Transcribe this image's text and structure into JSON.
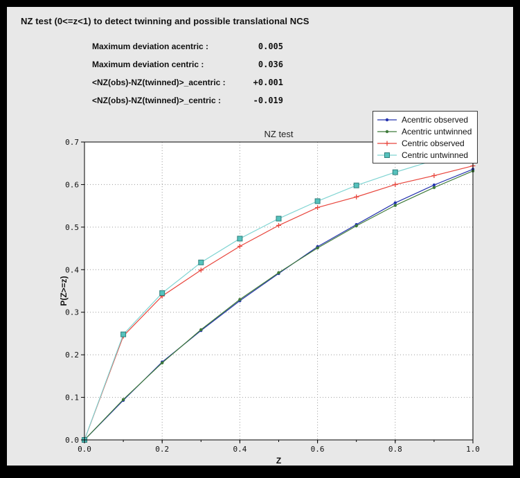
{
  "header": {
    "title": "NZ test (0<=z<1) to detect twinning and possible translational NCS",
    "stats": [
      {
        "label": "Maximum deviation acentric :",
        "value": "0.005"
      },
      {
        "label": "Maximum deviation centric :",
        "value": "0.036"
      },
      {
        "label": "<NZ(obs)-NZ(twinned)>_acentric :",
        "value": "+0.001"
      },
      {
        "label": "<NZ(obs)-NZ(twinned)>_centric :",
        "value": "-0.019"
      }
    ]
  },
  "chart_data": {
    "type": "line",
    "title": "NZ test",
    "xlabel": "Z",
    "ylabel": "P(Z>=z)",
    "xlim": [
      0.0,
      1.0
    ],
    "ylim": [
      0.0,
      0.7
    ],
    "x_ticks": [
      0.0,
      0.2,
      0.4,
      0.6,
      0.8,
      1.0
    ],
    "y_ticks": [
      0.0,
      0.1,
      0.2,
      0.3,
      0.4,
      0.5,
      0.6,
      0.7
    ],
    "grid": "dotted",
    "grid_color": "#9a9a9a",
    "plot_bg": "#ffffff",
    "figure_bg": "#e8e8e8",
    "legend_position": "upper right",
    "x": [
      0.0,
      0.1,
      0.2,
      0.3,
      0.4,
      0.5,
      0.6,
      0.7,
      0.8,
      0.9,
      1.0
    ],
    "series": [
      {
        "name": "Acentric observed",
        "color": "#2433ae",
        "marker": "dot",
        "values": [
          0.0,
          0.093,
          0.183,
          0.257,
          0.327,
          0.391,
          0.454,
          0.506,
          0.557,
          0.599,
          0.636
        ]
      },
      {
        "name": "Acentric untwinned",
        "color": "#3f7a3b",
        "marker": "dot",
        "values": [
          0.0,
          0.095,
          0.181,
          0.259,
          0.33,
          0.393,
          0.451,
          0.503,
          0.551,
          0.593,
          0.632
        ]
      },
      {
        "name": "Centric observed",
        "color": "#e8453c",
        "marker": "plus",
        "values": [
          0.0,
          0.244,
          0.338,
          0.399,
          0.455,
          0.504,
          0.546,
          0.571,
          0.6,
          0.621,
          0.644
        ]
      },
      {
        "name": "Centric untwinned",
        "color": "#7fd4d2",
        "marker": "square",
        "marker_fill": "#56c2bd",
        "marker_edge": "#2f7f7c",
        "values": [
          0.0,
          0.248,
          0.345,
          0.417,
          0.473,
          0.52,
          0.561,
          0.598,
          0.629,
          0.657,
          0.683
        ]
      }
    ]
  }
}
